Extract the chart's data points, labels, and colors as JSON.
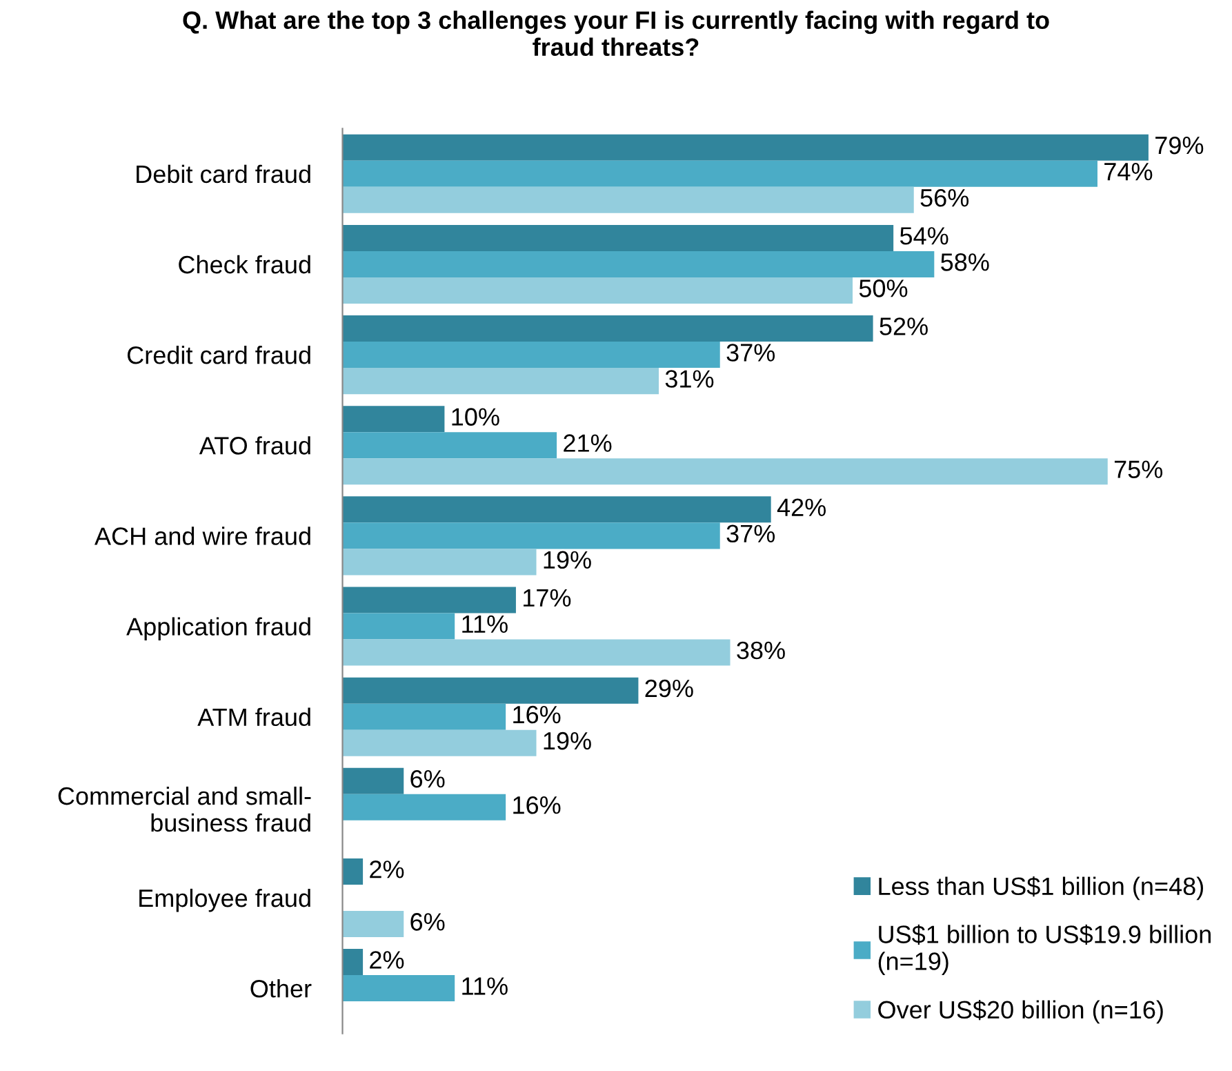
{
  "chart_data": {
    "type": "bar",
    "orientation": "horizontal",
    "title": "Q. What are the top 3 challenges your FI is currently facing with regard to\nfraud threats?",
    "categories": [
      "Debit card fraud",
      "Check fraud",
      "Credit card fraud",
      "ATO fraud",
      "ACH and wire fraud",
      "Application fraud",
      "ATM fraud",
      "Commercial and small-\nbusiness fraud",
      "Employee fraud",
      "Other"
    ],
    "series": [
      {
        "name": "Less than US$1 billion (n=48)",
        "color": "#31859c",
        "values": [
          79,
          54,
          52,
          10,
          42,
          17,
          29,
          6,
          2,
          2
        ],
        "value_labels": [
          "79%",
          "54%",
          "52%",
          "10%",
          "42%",
          "17%",
          "29%",
          "6%",
          "2%",
          "2%"
        ]
      },
      {
        "name": "US$1 billion to US$19.9 billion\n(n=19)",
        "color": "#4bacc6",
        "values": [
          74,
          58,
          37,
          21,
          37,
          11,
          16,
          16,
          null,
          11
        ],
        "value_labels": [
          "74%",
          "58%",
          "37%",
          "21%",
          "37%",
          "11%",
          "16%",
          "16%",
          null,
          "11%"
        ]
      },
      {
        "name": "Over US$20 billion (n=16)",
        "color": "#93cddd",
        "values": [
          56,
          50,
          31,
          75,
          19,
          38,
          19,
          null,
          6,
          null
        ],
        "value_labels": [
          "56%",
          "50%",
          "31%",
          "75%",
          "19%",
          "38%",
          "19%",
          null,
          "6%",
          null
        ]
      }
    ],
    "legend": "bottom right",
    "grid": false
  }
}
